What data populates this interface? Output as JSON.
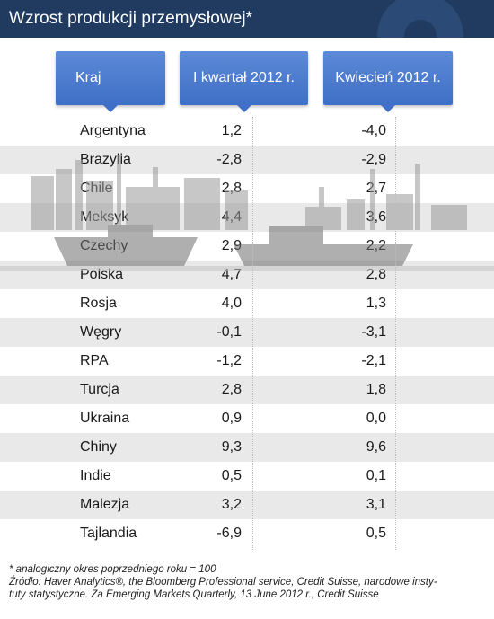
{
  "title": "Wzrost produkcji przemysłowej*",
  "columns": {
    "country": "Kraj",
    "q1": "I kwartał 2012 r.",
    "april": "Kwiecień 2012 r."
  },
  "rows": [
    {
      "country": "Argentyna",
      "q1": "1,2",
      "april": "-4,0"
    },
    {
      "country": "Brazylia",
      "q1": "-2,8",
      "april": "-2,9"
    },
    {
      "country": "Chile",
      "q1": "2,8",
      "april": "2,7"
    },
    {
      "country": "Meksyk",
      "q1": "4,4",
      "april": "3,6"
    },
    {
      "country": "Czechy",
      "q1": "2,9",
      "april": "2,2"
    },
    {
      "country": "Polska",
      "q1": "4,7",
      "april": "2,8"
    },
    {
      "country": "Rosja",
      "q1": "4,0",
      "april": "1,3"
    },
    {
      "country": "Węgry",
      "q1": "-0,1",
      "april": "-3,1"
    },
    {
      "country": "RPA",
      "q1": "-1,2",
      "april": "-2,1"
    },
    {
      "country": "Turcja",
      "q1": "2,8",
      "april": "1,8"
    },
    {
      "country": "Ukraina",
      "q1": "0,9",
      "april": "0,0"
    },
    {
      "country": "Chiny",
      "q1": "9,3",
      "april": "9,6"
    },
    {
      "country": "Indie",
      "q1": "0,5",
      "april": "0,1"
    },
    {
      "country": "Malezja",
      "q1": "3,2",
      "april": "3,1"
    },
    {
      "country": "Tajlandia",
      "q1": "-6,9",
      "april": "0,5"
    }
  ],
  "footnote": {
    "line1": "* analogiczny okres poprzedniego roku = 100",
    "line2": "Źródło: Haver Analytics®, the Bloomberg Professional service, Credit Suisse, narodowe insty-",
    "line3": "tuty statystyczne. Za Emerging Markets Quarterly, 13 June 2012 r., Credit Suisse"
  },
  "colors": {
    "title_bar": "#203a60",
    "header": "#4a7bd0",
    "row_stripe": "#e9e9e9"
  }
}
